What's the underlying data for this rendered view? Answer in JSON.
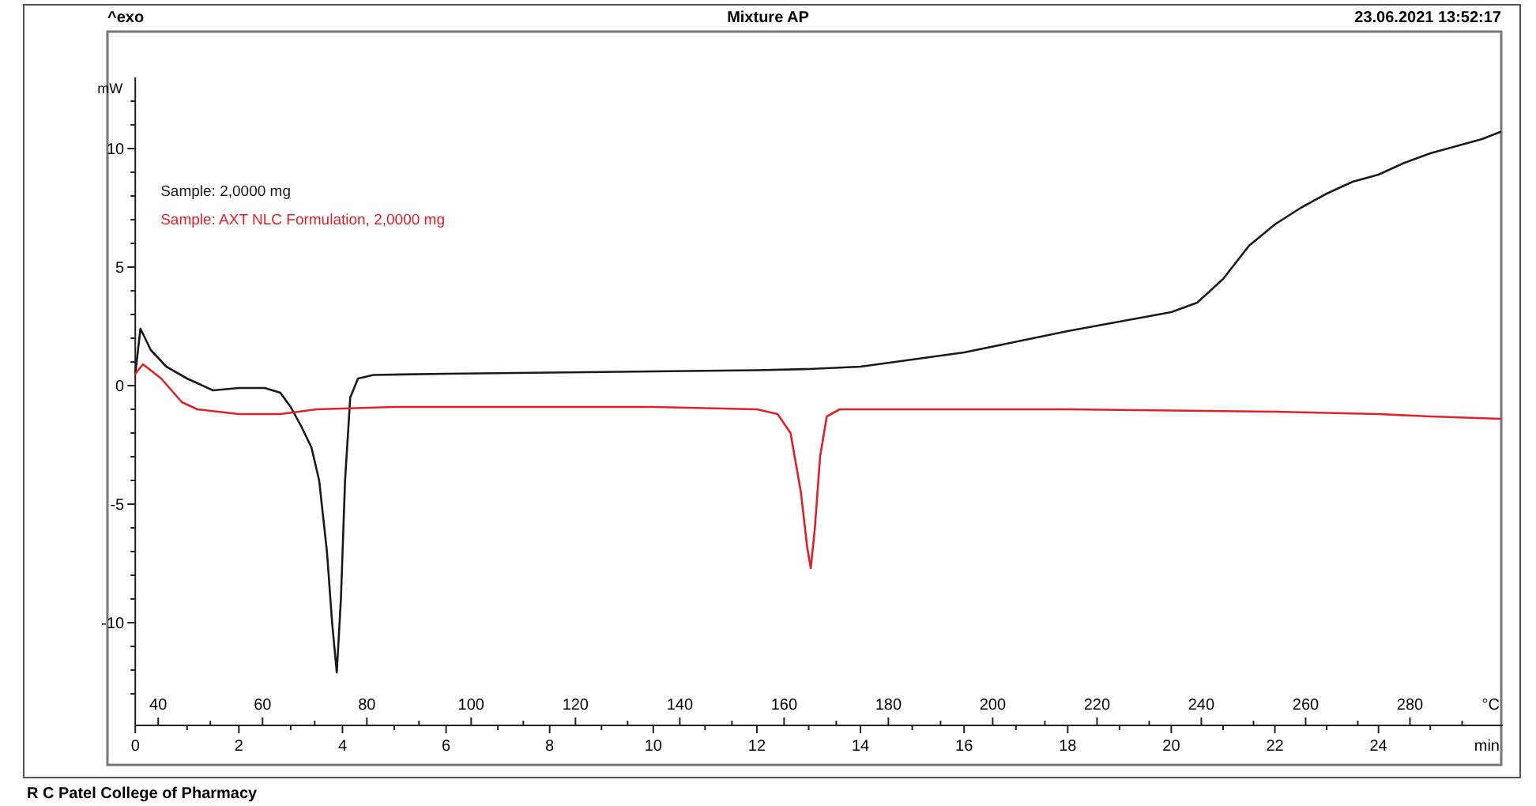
{
  "chart_data": {
    "type": "line",
    "title": "Mixture AP",
    "subtitle": "23.06.2021 13:52:17",
    "ylabel": "mW",
    "xlabel": "min",
    "x2label": "°C",
    "annotations": [
      "^exo",
      "R C Patel College of Pharmacy"
    ],
    "xlim": [
      0,
      26.4
    ],
    "xticks": [
      0,
      {
        "value": 1,
        "label": null
      },
      2,
      {
        "value": 3,
        "label": null
      },
      4,
      {
        "value": 5,
        "label": null
      },
      6,
      {
        "value": 7,
        "label": null
      },
      8,
      {
        "value": 9,
        "label": null
      },
      10,
      {
        "value": 11,
        "label": null
      },
      12,
      {
        "value": 13,
        "label": null
      },
      14,
      {
        "value": 15,
        "label": null
      },
      16,
      {
        "value": 17,
        "label": null
      },
      18,
      {
        "value": 19,
        "label": null
      },
      20,
      {
        "value": 21,
        "label": null
      },
      22,
      {
        "value": 23,
        "label": null
      },
      24,
      {
        "value": 25,
        "label": null
      }
    ],
    "x2lim": [
      35.6,
      297.8
    ],
    "x2ticks": [
      40,
      {
        "value": 50,
        "label": null
      },
      60,
      {
        "value": 70,
        "label": null
      },
      80,
      {
        "value": 90,
        "label": null
      },
      100,
      {
        "value": 110,
        "label": null
      },
      120,
      {
        "value": 130,
        "label": null
      },
      140,
      {
        "value": 150,
        "label": null
      },
      160,
      {
        "value": 170,
        "label": null
      },
      180,
      {
        "value": 190,
        "label": null
      },
      200,
      {
        "value": 210,
        "label": null
      },
      220,
      {
        "value": 230,
        "label": null
      },
      240,
      {
        "value": 250,
        "label": null
      },
      260,
      {
        "value": 270,
        "label": null
      },
      280,
      {
        "value": 290,
        "label": null
      }
    ],
    "ylim": [
      -14,
      13
    ],
    "yticks": [
      {
        "value": -13,
        "label": null
      },
      {
        "value": -12,
        "label": null
      },
      {
        "value": -11,
        "label": null
      },
      -10,
      {
        "value": -9,
        "label": null
      },
      {
        "value": -8,
        "label": null
      },
      {
        "value": -7,
        "label": null
      },
      {
        "value": -6,
        "label": null
      },
      -5,
      {
        "value": -4,
        "label": null
      },
      {
        "value": -3,
        "label": null
      },
      {
        "value": -2,
        "label": null
      },
      {
        "value": -1,
        "label": null
      },
      0,
      {
        "value": 1,
        "label": null
      },
      {
        "value": 2,
        "label": null
      },
      {
        "value": 3,
        "label": null
      },
      {
        "value": 4,
        "label": null
      },
      5,
      {
        "value": 6,
        "label": null
      },
      {
        "value": 7,
        "label": null
      },
      {
        "value": 8,
        "label": null
      },
      {
        "value": 9,
        "label": null
      },
      10,
      {
        "value": 11,
        "label": null
      },
      {
        "value": 12,
        "label": null
      }
    ],
    "legend": "top left",
    "grid": false,
    "marker": "none",
    "line_style": "solid",
    "series": [
      {
        "name": "Sample: 2,0000 mg",
        "color": "#1a1a1a",
        "x": [
          0,
          0.1,
          0.3,
          0.6,
          1,
          1.5,
          2,
          2.5,
          2.8,
          3.0,
          3.2,
          3.4,
          3.55,
          3.7,
          3.8,
          3.89,
          3.97,
          4.05,
          4.15,
          4.3,
          4.6,
          6,
          8,
          10,
          12,
          13,
          14,
          15,
          16,
          17,
          18,
          19,
          20,
          20.5,
          21,
          21.5,
          22,
          22.5,
          23,
          23.5,
          24,
          24.5,
          25,
          25.5,
          26,
          26.35
        ],
        "values": [
          0.5,
          2.4,
          1.5,
          0.8,
          0.3,
          -0.2,
          -0.1,
          -0.1,
          -0.3,
          -0.9,
          -1.7,
          -2.6,
          -4,
          -7,
          -10,
          -12.1,
          -9,
          -4,
          -0.5,
          0.3,
          0.45,
          0.5,
          0.55,
          0.6,
          0.65,
          0.7,
          0.8,
          1.1,
          1.4,
          1.85,
          2.3,
          2.7,
          3.1,
          3.5,
          4.5,
          5.9,
          6.8,
          7.5,
          8.1,
          8.6,
          8.9,
          9.4,
          9.8,
          10.1,
          10.4,
          10.7
        ]
      },
      {
        "name": "Sample: AXT NLC Formulation, 2,0000 mg",
        "color": "#e0202a",
        "x": [
          0,
          0.15,
          0.5,
          0.9,
          1.2,
          2,
          2.8,
          3.5,
          5,
          8,
          10,
          12,
          12.4,
          12.65,
          12.85,
          12.97,
          13.04,
          13.12,
          13.22,
          13.35,
          13.6,
          16,
          18,
          20,
          22,
          24,
          25,
          26.35
        ],
        "values": [
          0.5,
          0.9,
          0.3,
          -0.7,
          -1.0,
          -1.2,
          -1.2,
          -1.0,
          -0.9,
          -0.9,
          -0.9,
          -1.0,
          -1.2,
          -2,
          -4.5,
          -6.8,
          -7.7,
          -6,
          -3,
          -1.3,
          -1.0,
          -1.0,
          -1.0,
          -1.05,
          -1.1,
          -1.2,
          -1.3,
          -1.4
        ]
      }
    ]
  }
}
